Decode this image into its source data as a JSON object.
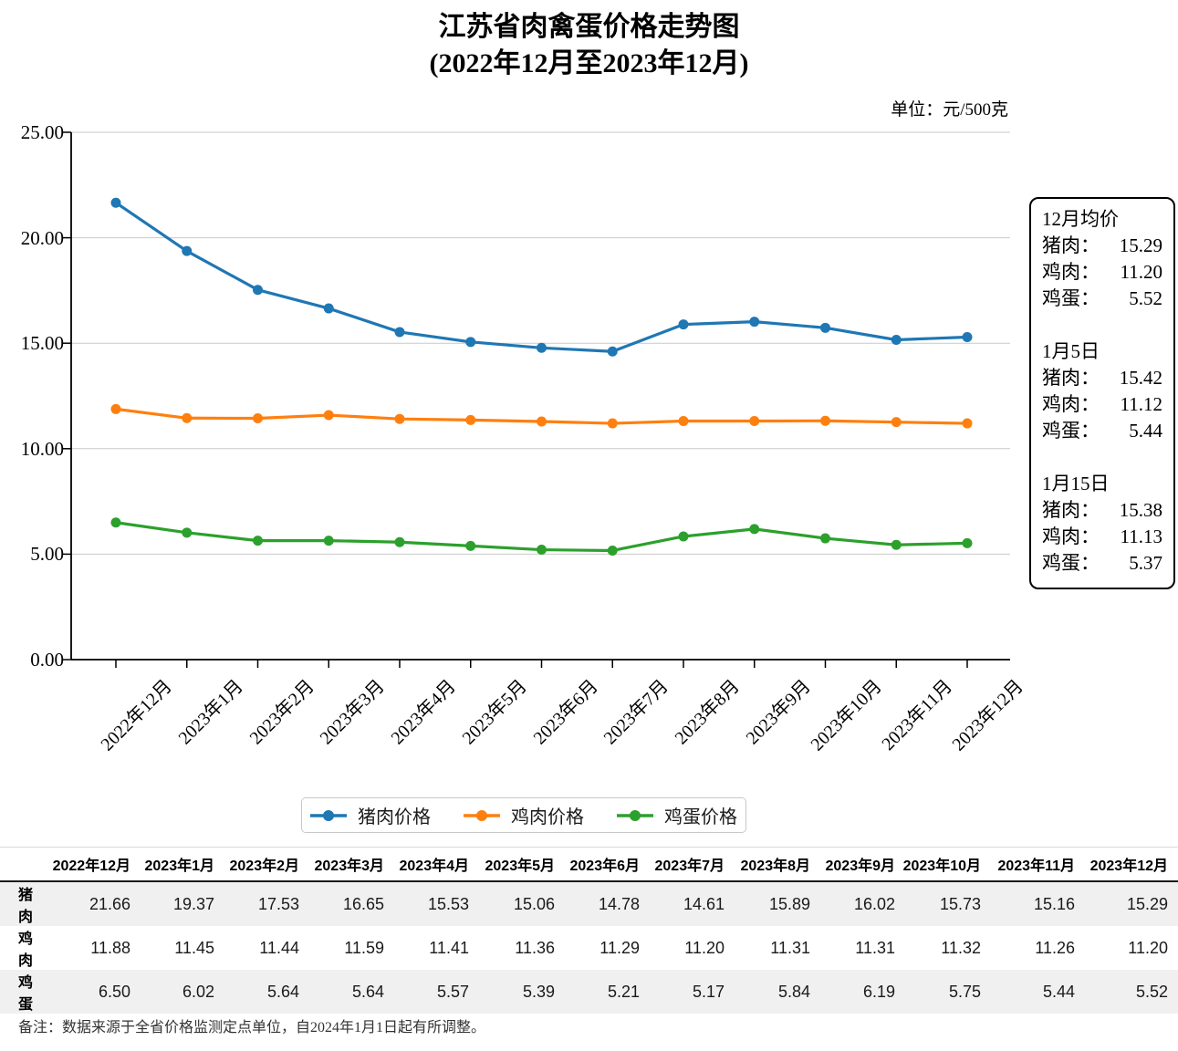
{
  "title": {
    "line1": "江苏省肉禽蛋价格走势图",
    "line2": "(2022年12月至2023年12月)"
  },
  "unit_label": "单位：元/500克",
  "chart_data": {
    "type": "line",
    "categories": [
      "2022年12月",
      "2023年1月",
      "2023年2月",
      "2023年3月",
      "2023年4月",
      "2023年5月",
      "2023年6月",
      "2023年7月",
      "2023年8月",
      "2023年9月",
      "2023年10月",
      "2023年11月",
      "2023年12月"
    ],
    "series": [
      {
        "name": "猪肉价格",
        "slug": "pork-price",
        "color": "#1f77b4",
        "values": [
          21.66,
          19.37,
          17.53,
          16.65,
          15.53,
          15.06,
          14.78,
          14.61,
          15.89,
          16.02,
          15.73,
          15.16,
          15.29
        ]
      },
      {
        "name": "鸡肉价格",
        "slug": "chicken-price",
        "color": "#ff7f0e",
        "values": [
          11.88,
          11.45,
          11.44,
          11.59,
          11.41,
          11.36,
          11.29,
          11.2,
          11.31,
          11.31,
          11.32,
          11.26,
          11.2
        ]
      },
      {
        "name": "鸡蛋价格",
        "slug": "egg-price",
        "color": "#2ca02c",
        "values": [
          6.5,
          6.02,
          5.64,
          5.64,
          5.57,
          5.39,
          5.21,
          5.17,
          5.84,
          6.19,
          5.75,
          5.44,
          5.52
        ]
      }
    ],
    "ylim": [
      0,
      25
    ],
    "ytick_values": [
      0,
      5,
      10,
      15,
      20,
      25
    ],
    "ytick_labels": [
      "0.00",
      "5.00",
      "10.00",
      "15.00",
      "20.00",
      "25.00"
    ],
    "grid": true,
    "legend_position": "bottom",
    "gridline_color": "#c9c9c9",
    "axis_color": "#000000"
  },
  "annotation": {
    "sections": [
      {
        "heading": "12月均价",
        "rows": [
          {
            "label": "猪肉：",
            "value": "15.29"
          },
          {
            "label": "鸡肉：",
            "value": "11.20"
          },
          {
            "label": "鸡蛋：",
            "value": "5.52"
          }
        ]
      },
      {
        "heading": "1月5日",
        "rows": [
          {
            "label": "猪肉：",
            "value": "15.42"
          },
          {
            "label": "鸡肉：",
            "value": "11.12"
          },
          {
            "label": "鸡蛋：",
            "value": "5.44"
          }
        ]
      },
      {
        "heading": "1月15日",
        "rows": [
          {
            "label": "猪肉：",
            "value": "15.38"
          },
          {
            "label": "鸡肉：",
            "value": "11.13"
          },
          {
            "label": "鸡蛋：",
            "value": "5.37"
          }
        ]
      }
    ]
  },
  "table": {
    "headers": [
      "2022年12月",
      "2023年1月",
      "2023年2月",
      "2023年3月",
      "2023年4月",
      "2023年5月",
      "2023年6月",
      "2023年7月",
      "2023年8月",
      "2023年9月",
      "2023年10月",
      "2023年11月",
      "2023年12月"
    ],
    "rows": [
      {
        "label": "猪肉",
        "values": [
          "21.66",
          "19.37",
          "17.53",
          "16.65",
          "15.53",
          "15.06",
          "14.78",
          "14.61",
          "15.89",
          "16.02",
          "15.73",
          "15.16",
          "15.29"
        ]
      },
      {
        "label": "鸡肉",
        "values": [
          "11.88",
          "11.45",
          "11.44",
          "11.59",
          "11.41",
          "11.36",
          "11.29",
          "11.20",
          "11.31",
          "11.31",
          "11.32",
          "11.26",
          "11.20"
        ]
      },
      {
        "label": "鸡蛋",
        "values": [
          "6.50",
          "6.02",
          "5.64",
          "5.64",
          "5.57",
          "5.39",
          "5.21",
          "5.17",
          "5.84",
          "6.19",
          "5.75",
          "5.44",
          "5.52"
        ]
      }
    ]
  },
  "footnote": "备注：数据来源于全省价格监测定点单位，自2024年1月1日起有所调整。"
}
